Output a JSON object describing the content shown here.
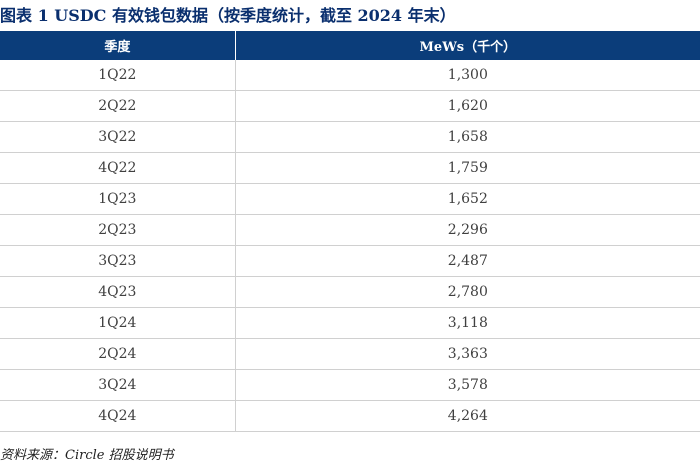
{
  "title": "图表 1   USDC 有效钱包数据（按季度统计，截至 2024 年末）",
  "table": {
    "headers": [
      "季度",
      "MeWs（千个）"
    ],
    "rows": [
      [
        "1Q22",
        "1,300"
      ],
      [
        "2Q22",
        "1,620"
      ],
      [
        "3Q22",
        "1,658"
      ],
      [
        "4Q22",
        "1,759"
      ],
      [
        "1Q23",
        "1,652"
      ],
      [
        "2Q23",
        "2,296"
      ],
      [
        "3Q23",
        "2,487"
      ],
      [
        "4Q23",
        "2,780"
      ],
      [
        "1Q24",
        "3,118"
      ],
      [
        "2Q24",
        "3,363"
      ],
      [
        "3Q24",
        "3,578"
      ],
      [
        "4Q24",
        "4,264"
      ]
    ]
  },
  "source": "资料来源：Circle 招股说明书",
  "colors": {
    "header_bg": "#0b3d7a",
    "title_color": "#0a2f6e"
  }
}
